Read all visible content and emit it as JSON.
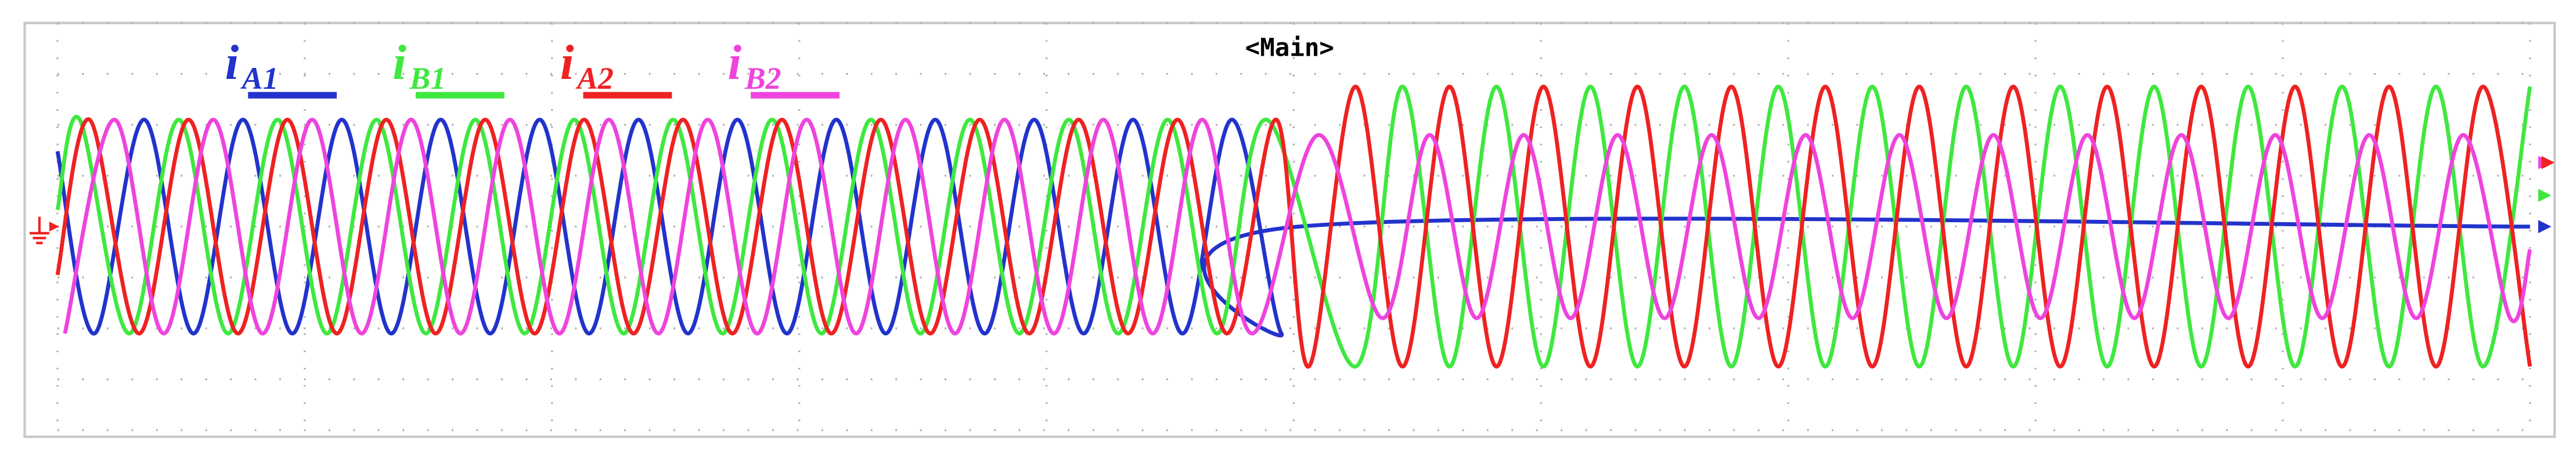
{
  "chart_data": {
    "type": "line",
    "title": "<Main>",
    "xlim": [
      0,
      10
    ],
    "ylim": [
      -4,
      4
    ],
    "xticks": [
      0,
      1,
      2,
      3,
      4,
      5,
      6,
      7,
      8,
      9,
      10
    ],
    "yticks": [
      -4,
      -3,
      -2,
      -1,
      0,
      1,
      2,
      3,
      4
    ],
    "grid": true,
    "series": [
      {
        "name": "iA1",
        "color": "#2233cc",
        "x": [
          0,
          0.15,
          0.35,
          0.55,
          0.75,
          0.95,
          1.15,
          1.35,
          1.55,
          1.75,
          1.95,
          2.15,
          2.35,
          2.55,
          2.75,
          2.95,
          3.15,
          3.35,
          3.55,
          3.75,
          3.95,
          4.15,
          4.35,
          4.55,
          4.75,
          4.95,
          5.02,
          10
        ],
        "values": [
          1.48,
          -2.1,
          2.1,
          -2.1,
          2.1,
          -2.1,
          2.1,
          -2.1,
          2.1,
          -2.1,
          2.1,
          -2.1,
          2.1,
          -2.1,
          2.1,
          -2.1,
          2.1,
          -2.1,
          2.1,
          -2.1,
          2.1,
          -2.1,
          2.1,
          -2.1,
          2.1,
          -2.1,
          0,
          0
        ]
      },
      {
        "name": "iB1",
        "color": "#3fe83f",
        "x": [
          0,
          0.09,
          0.29,
          0.49,
          0.69,
          0.89,
          1.09,
          1.29,
          1.49,
          1.69,
          1.89,
          2.09,
          2.29,
          2.49,
          2.69,
          2.89,
          3.09,
          3.29,
          3.49,
          3.69,
          3.89,
          4.09,
          4.29,
          4.49,
          4.69,
          4.89,
          5.25,
          5.44,
          5.63,
          5.82,
          6.01,
          6.2,
          6.39,
          6.58,
          6.77,
          6.96,
          7.15,
          7.34,
          7.53,
          7.72,
          7.91,
          8.1,
          8.29,
          8.48,
          8.67,
          8.86,
          9.05,
          9.24,
          9.43,
          9.62,
          9.81,
          10
        ],
        "values": [
          0.33,
          2.1,
          -2.1,
          2.1,
          -2.1,
          2.1,
          -2.1,
          2.1,
          -2.1,
          2.1,
          -2.1,
          2.1,
          -2.1,
          2.1,
          -2.1,
          2.1,
          -2.1,
          2.1,
          -2.1,
          2.1,
          -2.1,
          2.1,
          -2.1,
          2.1,
          -2.1,
          2.1,
          -2.75,
          2.75,
          -2.75,
          2.75,
          -2.75,
          2.75,
          -2.75,
          2.75,
          -2.75,
          2.75,
          -2.75,
          2.75,
          -2.75,
          2.75,
          -2.75,
          2.75,
          -2.75,
          2.75,
          -2.75,
          2.75,
          -2.75,
          2.75,
          -2.75,
          2.75,
          -2.75,
          2.75
        ]
      },
      {
        "name": "iA2",
        "color": "#ee2222",
        "x": [
          0,
          0.13,
          0.33,
          0.53,
          0.73,
          0.93,
          1.13,
          1.33,
          1.53,
          1.73,
          1.93,
          2.13,
          2.33,
          2.53,
          2.73,
          2.93,
          3.13,
          3.33,
          3.53,
          3.73,
          3.93,
          4.13,
          4.33,
          4.53,
          4.73,
          4.93,
          5.06,
          5.25,
          5.44,
          5.63,
          5.82,
          6.01,
          6.2,
          6.39,
          6.58,
          6.77,
          6.96,
          7.15,
          7.34,
          7.53,
          7.72,
          7.91,
          8.1,
          8.29,
          8.48,
          8.67,
          8.86,
          9.05,
          9.24,
          9.43,
          9.62,
          9.81,
          10
        ],
        "values": [
          -0.95,
          2.1,
          -2.1,
          2.1,
          -2.1,
          2.1,
          -2.1,
          2.1,
          -2.1,
          2.1,
          -2.1,
          2.1,
          -2.1,
          2.1,
          -2.1,
          2.1,
          -2.1,
          2.1,
          -2.1,
          2.1,
          -2.1,
          2.1,
          -2.1,
          2.1,
          -2.1,
          2.1,
          -2.75,
          2.75,
          -2.75,
          2.75,
          -2.75,
          2.75,
          -2.75,
          2.75,
          -2.75,
          2.75,
          -2.75,
          2.75,
          -2.75,
          2.75,
          -2.75,
          2.75,
          -2.75,
          2.75,
          -2.75,
          2.75,
          -2.75,
          2.75,
          -2.75,
          2.75,
          -2.75,
          2.75,
          -2.75
        ]
      },
      {
        "name": "iB2",
        "color": "#ee44dd",
        "x": [
          0.03,
          0.23,
          0.43,
          0.63,
          0.83,
          1.03,
          1.23,
          1.43,
          1.63,
          1.83,
          2.03,
          2.23,
          2.43,
          2.63,
          2.83,
          3.03,
          3.23,
          3.43,
          3.63,
          3.83,
          4.03,
          4.23,
          4.43,
          4.63,
          4.83,
          5.1,
          5.36,
          5.55,
          5.74,
          5.93,
          6.12,
          6.31,
          6.5,
          6.69,
          6.88,
          7.07,
          7.26,
          7.45,
          7.64,
          7.83,
          8.02,
          8.21,
          8.4,
          8.59,
          8.78,
          8.97,
          9.16,
          9.35,
          9.54,
          9.73,
          9.92,
          10
        ],
        "values": [
          -2.1,
          2.1,
          -2.1,
          2.1,
          -2.1,
          2.1,
          -2.1,
          2.1,
          -2.1,
          2.1,
          -2.1,
          2.1,
          -2.1,
          2.1,
          -2.1,
          2.1,
          -2.1,
          2.1,
          -2.1,
          2.1,
          -2.1,
          2.1,
          -2.1,
          2.1,
          -2.1,
          1.8,
          -1.8,
          1.8,
          -1.8,
          1.8,
          -1.8,
          1.8,
          -1.8,
          1.8,
          -1.8,
          1.8,
          -1.8,
          1.8,
          -1.8,
          1.8,
          -1.8,
          1.8,
          -1.8,
          1.8,
          -1.8,
          1.8,
          -1.8,
          1.8,
          -1.8,
          1.8,
          -1.8,
          -0.45
        ]
      }
    ]
  }
}
